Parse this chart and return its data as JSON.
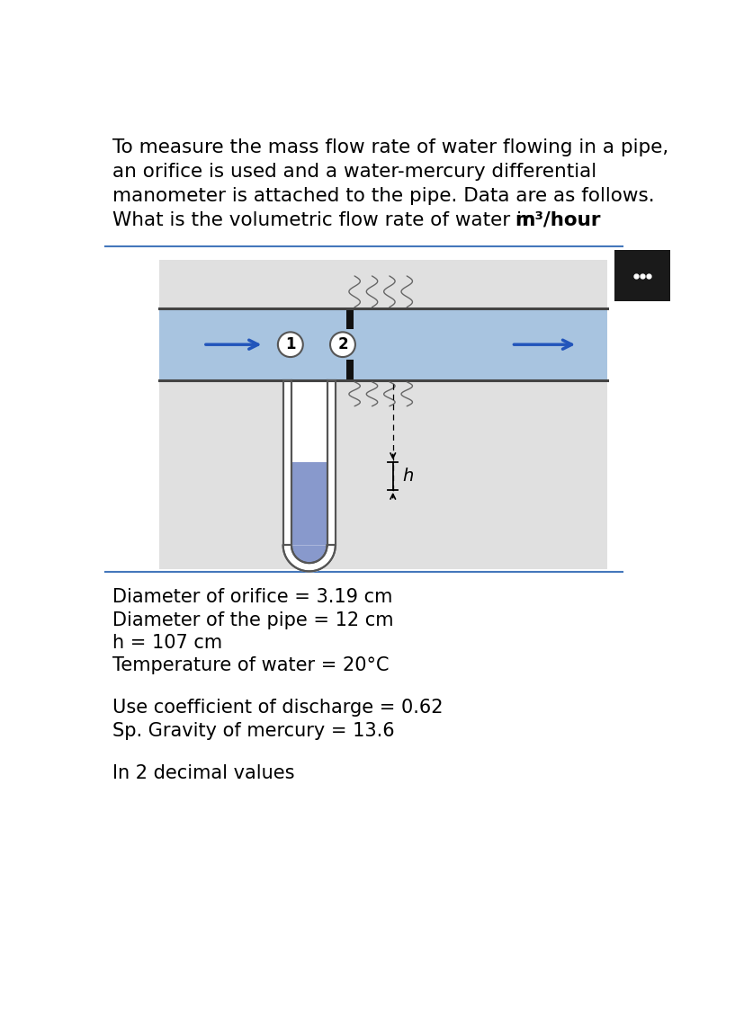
{
  "title_line1": "To measure the mass flow rate of water flowing in a pipe,",
  "title_line2": "an orifice is used and a water-mercury differential",
  "title_line3": "manometer is attached to the pipe. Data are as follows.",
  "title_line4_normal": "What is the volumetric flow rate of water in ",
  "title_line4_bold": "m³/hour",
  "data_lines": [
    "Diameter of orifice = 3.19 cm",
    "Diameter of the pipe = 12 cm",
    "h = 107 cm",
    "Temperature of water = 20°C"
  ],
  "data_lines2": [
    "Use coefficient of discharge = 0.62",
    "Sp. Gravity of mercury = 13.6"
  ],
  "data_lines3": [
    "In 2 decimal values"
  ],
  "bg_color": "#ffffff",
  "pipe_fill": "#a8c4e0",
  "pipe_stroke": "#444444",
  "manometer_tube_fill": "#ffffff",
  "mercury_fill": "#8899cc",
  "separator_color": "#4477bb",
  "dark_box_color": "#1a1a1a",
  "arrow_color": "#2255bb",
  "text_color": "#000000",
  "diag_bg": "#e0e0e0",
  "font_size_title": 15.5,
  "font_size_data": 15.0
}
